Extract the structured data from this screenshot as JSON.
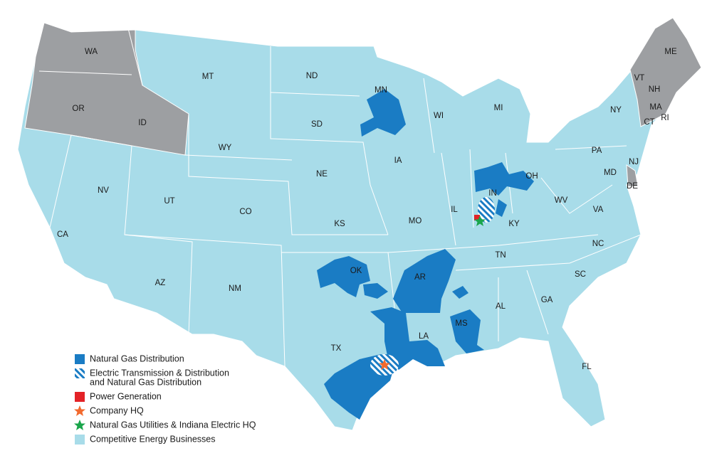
{
  "map": {
    "states": [
      "WA",
      "OR",
      "ID",
      "MT",
      "ND",
      "MN",
      "WI",
      "MI",
      "NY",
      "ME",
      "VT",
      "NH",
      "MA",
      "CT",
      "RI",
      "PA",
      "NJ",
      "DE",
      "MD",
      "OH",
      "IN",
      "IL",
      "IA",
      "NE",
      "SD",
      "WY",
      "NV",
      "UT",
      "CO",
      "KS",
      "MO",
      "KY",
      "WV",
      "VA",
      "NC",
      "TN",
      "SC",
      "GA",
      "AL",
      "MS",
      "AR",
      "LA",
      "OK",
      "TX",
      "NM",
      "AZ",
      "CA",
      "FL"
    ],
    "legend": [
      {
        "label": [
          "Natural Gas Distribution"
        ]
      },
      {
        "label": [
          "Electric Transmission & Distribution",
          "and Natural Gas Distribution"
        ]
      },
      {
        "label": [
          "Power Generation"
        ]
      },
      {
        "label": [
          "Company HQ"
        ]
      },
      {
        "label": [
          "Natural Gas Utilities & Indiana Electric HQ"
        ]
      },
      {
        "label": [
          "Competitive Energy Businesses"
        ]
      }
    ]
  }
}
